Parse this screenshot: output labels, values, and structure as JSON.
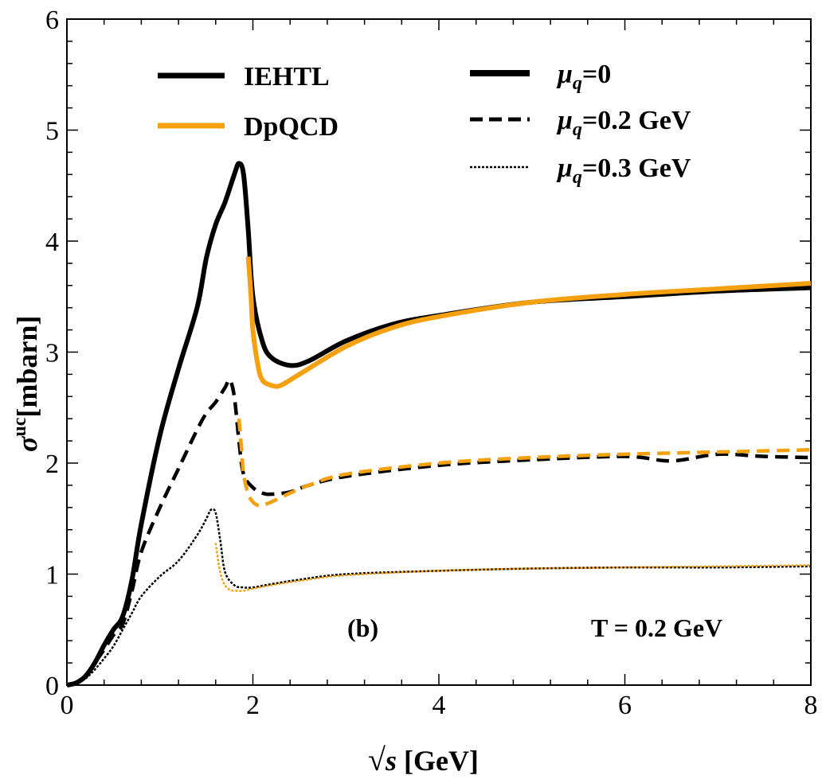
{
  "chart_data": {
    "type": "line",
    "title": "",
    "panel_label": "(b)",
    "annotation": "T = 0.2 GeV",
    "xlabel": "√s [GeV]",
    "ylabel": "σ^uc[mbarn]",
    "ylabel_symbol": "σ",
    "ylabel_sup": "uc",
    "ylabel_unit": "[mbarn]",
    "xlabel_root": "√",
    "xlabel_var": "s",
    "xlabel_unit": " [GeV]",
    "xlim": [
      0,
      8
    ],
    "ylim": [
      0,
      6
    ],
    "xticks": [
      0,
      2,
      4,
      6,
      8
    ],
    "yticks": [
      0,
      1,
      2,
      3,
      4,
      5,
      6
    ],
    "grid": false,
    "legend_models": [
      {
        "label": "IEHTL",
        "color": "#000000"
      },
      {
        "label": "DpQCD",
        "color": "#f5a00f"
      }
    ],
    "legend_styles": [
      {
        "symbol": "μ",
        "sub": "q",
        "rest": "=0",
        "dash": "solid"
      },
      {
        "symbol": "μ",
        "sub": "q",
        "rest": "=0.2 GeV",
        "dash": "dashed"
      },
      {
        "symbol": "μ",
        "sub": "q",
        "rest": "=0.3 GeV",
        "dash": "dotted"
      }
    ],
    "series": [
      {
        "name": "IEHTL μq=0",
        "model": "IEHTL",
        "mu_q": "0",
        "color": "#000000",
        "dash": "solid",
        "x": [
          0,
          0.1,
          0.2,
          0.3,
          0.4,
          0.5,
          0.6,
          0.7,
          0.8,
          1.0,
          1.2,
          1.4,
          1.5,
          1.6,
          1.7,
          1.8,
          1.85,
          1.9,
          1.95,
          2.0,
          2.1,
          2.2,
          2.4,
          2.6,
          3.0,
          3.5,
          4.0,
          5.0,
          6.0,
          7.0,
          8.0
        ],
        "y": [
          0,
          0.02,
          0.08,
          0.2,
          0.36,
          0.5,
          0.62,
          0.95,
          1.45,
          2.25,
          2.85,
          3.4,
          3.85,
          4.15,
          4.35,
          4.6,
          4.7,
          4.6,
          4.1,
          3.5,
          3.1,
          2.95,
          2.88,
          2.92,
          3.1,
          3.25,
          3.33,
          3.45,
          3.5,
          3.55,
          3.58
        ]
      },
      {
        "name": "DpQCD μq=0",
        "model": "DpQCD",
        "mu_q": "0",
        "color": "#f5a00f",
        "dash": "solid",
        "x": [
          1.95,
          1.98,
          2.0,
          2.05,
          2.1,
          2.2,
          2.3,
          2.5,
          3.0,
          3.5,
          4.0,
          5.0,
          6.0,
          7.0,
          8.0
        ],
        "y": [
          3.86,
          3.5,
          3.2,
          2.9,
          2.75,
          2.7,
          2.7,
          2.8,
          3.05,
          3.22,
          3.32,
          3.45,
          3.52,
          3.57,
          3.62
        ]
      },
      {
        "name": "IEHTL μq=0.2 GeV",
        "model": "IEHTL",
        "mu_q": "0.2",
        "color": "#000000",
        "dash": "dashed",
        "x": [
          0,
          0.1,
          0.2,
          0.3,
          0.4,
          0.5,
          0.6,
          0.7,
          0.8,
          1.0,
          1.2,
          1.4,
          1.5,
          1.6,
          1.7,
          1.75,
          1.8,
          1.85,
          1.9,
          2.0,
          2.1,
          2.2,
          2.4,
          2.6,
          3.0,
          4.0,
          5.0,
          6.0,
          6.5,
          7.0,
          7.5,
          8.0
        ],
        "y": [
          0,
          0.02,
          0.08,
          0.2,
          0.32,
          0.45,
          0.55,
          0.85,
          1.2,
          1.6,
          1.95,
          2.3,
          2.45,
          2.55,
          2.68,
          2.75,
          2.6,
          2.2,
          1.9,
          1.78,
          1.73,
          1.72,
          1.74,
          1.8,
          1.88,
          1.98,
          2.03,
          2.06,
          2.02,
          2.08,
          2.06,
          2.05
        ]
      },
      {
        "name": "DpQCD μq=0.2 GeV",
        "model": "DpQCD",
        "mu_q": "0.2",
        "color": "#f5a00f",
        "dash": "dashed",
        "x": [
          1.85,
          1.88,
          1.9,
          1.95,
          2.0,
          2.05,
          2.1,
          2.2,
          2.4,
          2.6,
          3.0,
          4.0,
          5.0,
          6.0,
          7.0,
          8.0
        ],
        "y": [
          2.4,
          2.1,
          1.9,
          1.72,
          1.65,
          1.62,
          1.62,
          1.65,
          1.73,
          1.8,
          1.9,
          2.0,
          2.05,
          2.08,
          2.1,
          2.12
        ]
      },
      {
        "name": "IEHTL μq=0.3 GeV",
        "model": "IEHTL",
        "mu_q": "0.3",
        "color": "#000000",
        "dash": "dotted",
        "x": [
          0,
          0.1,
          0.2,
          0.3,
          0.4,
          0.5,
          0.6,
          0.7,
          0.8,
          1.0,
          1.2,
          1.4,
          1.5,
          1.55,
          1.6,
          1.65,
          1.7,
          1.8,
          1.9,
          2.0,
          2.2,
          2.5,
          3.0,
          4.0,
          5.0,
          6.0,
          7.0,
          8.0
        ],
        "y": [
          0,
          0.02,
          0.06,
          0.14,
          0.24,
          0.35,
          0.5,
          0.65,
          0.8,
          0.98,
          1.12,
          1.35,
          1.5,
          1.58,
          1.55,
          1.3,
          1.02,
          0.9,
          0.88,
          0.88,
          0.91,
          0.95,
          1.0,
          1.03,
          1.05,
          1.06,
          1.06,
          1.07
        ]
      },
      {
        "name": "DpQCD μq=0.3 GeV",
        "model": "DpQCD",
        "mu_q": "0.3",
        "color": "#f5a00f",
        "dash": "dotted",
        "x": [
          1.6,
          1.63,
          1.66,
          1.7,
          1.75,
          1.8,
          1.9,
          2.0,
          2.2,
          2.5,
          3.0,
          4.0,
          5.0,
          6.0,
          7.0,
          8.0
        ],
        "y": [
          1.28,
          1.1,
          0.98,
          0.9,
          0.86,
          0.85,
          0.85,
          0.87,
          0.9,
          0.94,
          0.99,
          1.03,
          1.05,
          1.06,
          1.07,
          1.08
        ]
      }
    ]
  }
}
